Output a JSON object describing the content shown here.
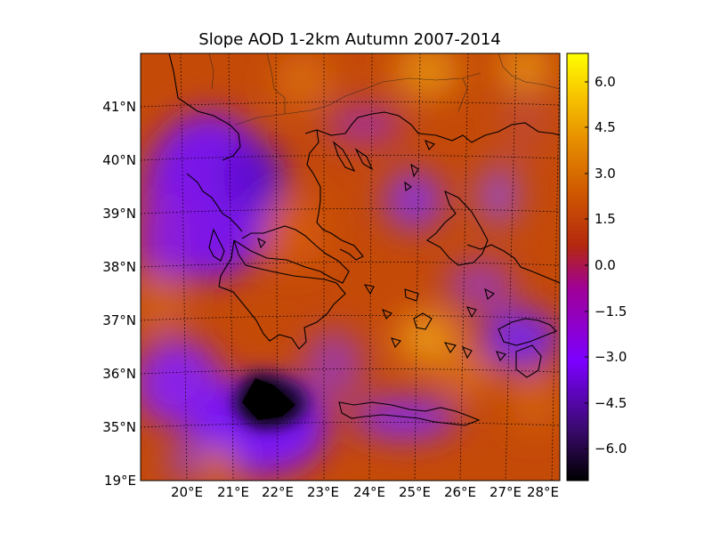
{
  "title": "Slope AOD 1-2km Autumn 2007-2014",
  "map": {
    "lon_labels": [
      "20°E",
      "21°E",
      "22°E",
      "23°E",
      "24°E",
      "25°E",
      "26°E",
      "27°E",
      "28°E"
    ],
    "lat_labels": [
      "19°E",
      "35°N",
      "36°N",
      "37°N",
      "38°N",
      "39°N",
      "40°N",
      "41°N"
    ],
    "lon_range": [
      19.0,
      28.5
    ],
    "lat_range": [
      34.0,
      42.0
    ],
    "grid": "dotted",
    "coastlines": true
  },
  "colorbar": {
    "colormap": "gnuplot",
    "range": [
      -7.0,
      7.0
    ],
    "ticks": [
      "6.0",
      "4.5",
      "3.0",
      "1.5",
      "0.0",
      "−1.5",
      "−3.0",
      "−4.5",
      "−6.0"
    ],
    "colors": [
      "#000000",
      "#3a0a6e",
      "#7c00ff",
      "#a00096",
      "#b4280f",
      "#d05a00",
      "#e79000",
      "#f7c400",
      "#ffff00"
    ]
  },
  "regions": {
    "min_label": "dark minimum south-west of Peloponnese",
    "max_label": "orange maximum near Dodecanese"
  }
}
